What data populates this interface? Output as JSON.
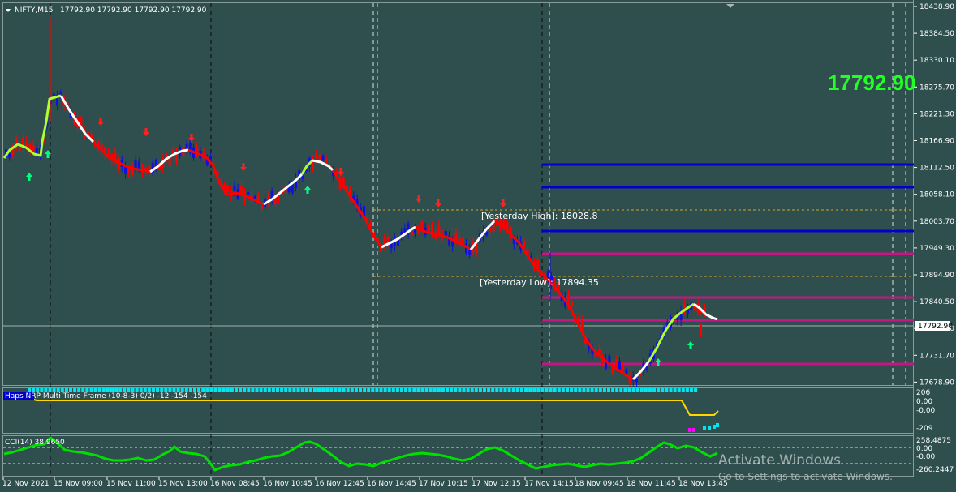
{
  "header": {
    "symbol": "NIFTY,M15",
    "ohlc": "17792.90 17792.90 17792.90 17792.90"
  },
  "current_price_big": "17792.90",
  "current_price_tag": "17792.90",
  "levels": {
    "yesterday_high": "[Yesterday High]: 18028.8",
    "yesterday_low": "[Yesterday Low]: 17894.35"
  },
  "indicator1": {
    "label": "Haps NRP Multi Time Frame (10-8-3) 0/2) -12 -154 -154",
    "ticks": [
      "206",
      "0.00",
      "-0.00",
      "-209"
    ]
  },
  "indicator2": {
    "label": "CCI(14) 38.9650",
    "ticks": [
      "258.4875",
      "0.00",
      "-0.00",
      "-260.2447"
    ]
  },
  "price_axis": [
    "18438.90",
    "18384.50",
    "18330.10",
    "18275.70",
    "18221.30",
    "18166.90",
    "18112.50",
    "18058.10",
    "18003.70",
    "17949.30",
    "17894.90",
    "17840.50",
    "17786.10",
    "17731.70",
    "17678.90"
  ],
  "time_axis": [
    "12 Nov 2021",
    "15 Nov 09:00",
    "15 Nov 11:00",
    "15 Nov 13:00",
    "16 Nov 08:45",
    "16 Nov 10:45",
    "16 Nov 12:45",
    "16 Nov 14:45",
    "17 Nov 10:15",
    "17 Nov 12:15",
    "17 Nov 14:15",
    "18 Nov 09:45",
    "18 Nov 11:45",
    "18 Nov 13:45"
  ],
  "watermark": {
    "title": "Activate Windows",
    "subtitle": "Go to Settings to activate Windows."
  },
  "colors": {
    "background": "#2f4f4f",
    "bull_candle": "#1010e0",
    "bear_candle": "#ff0000",
    "ma_up": "#adff2f",
    "ma_down": "#ff0000",
    "ma_neutral": "#ffffff",
    "resistance": "#0000cd",
    "pivot": "#c71585",
    "yesterday_line": "#daa520",
    "cci": "#00e000",
    "big_price": "#22ff22"
  },
  "icons": [
    "buy-arrow-icon",
    "sell-arrow-icon",
    "dropdown-triangle-icon"
  ]
}
